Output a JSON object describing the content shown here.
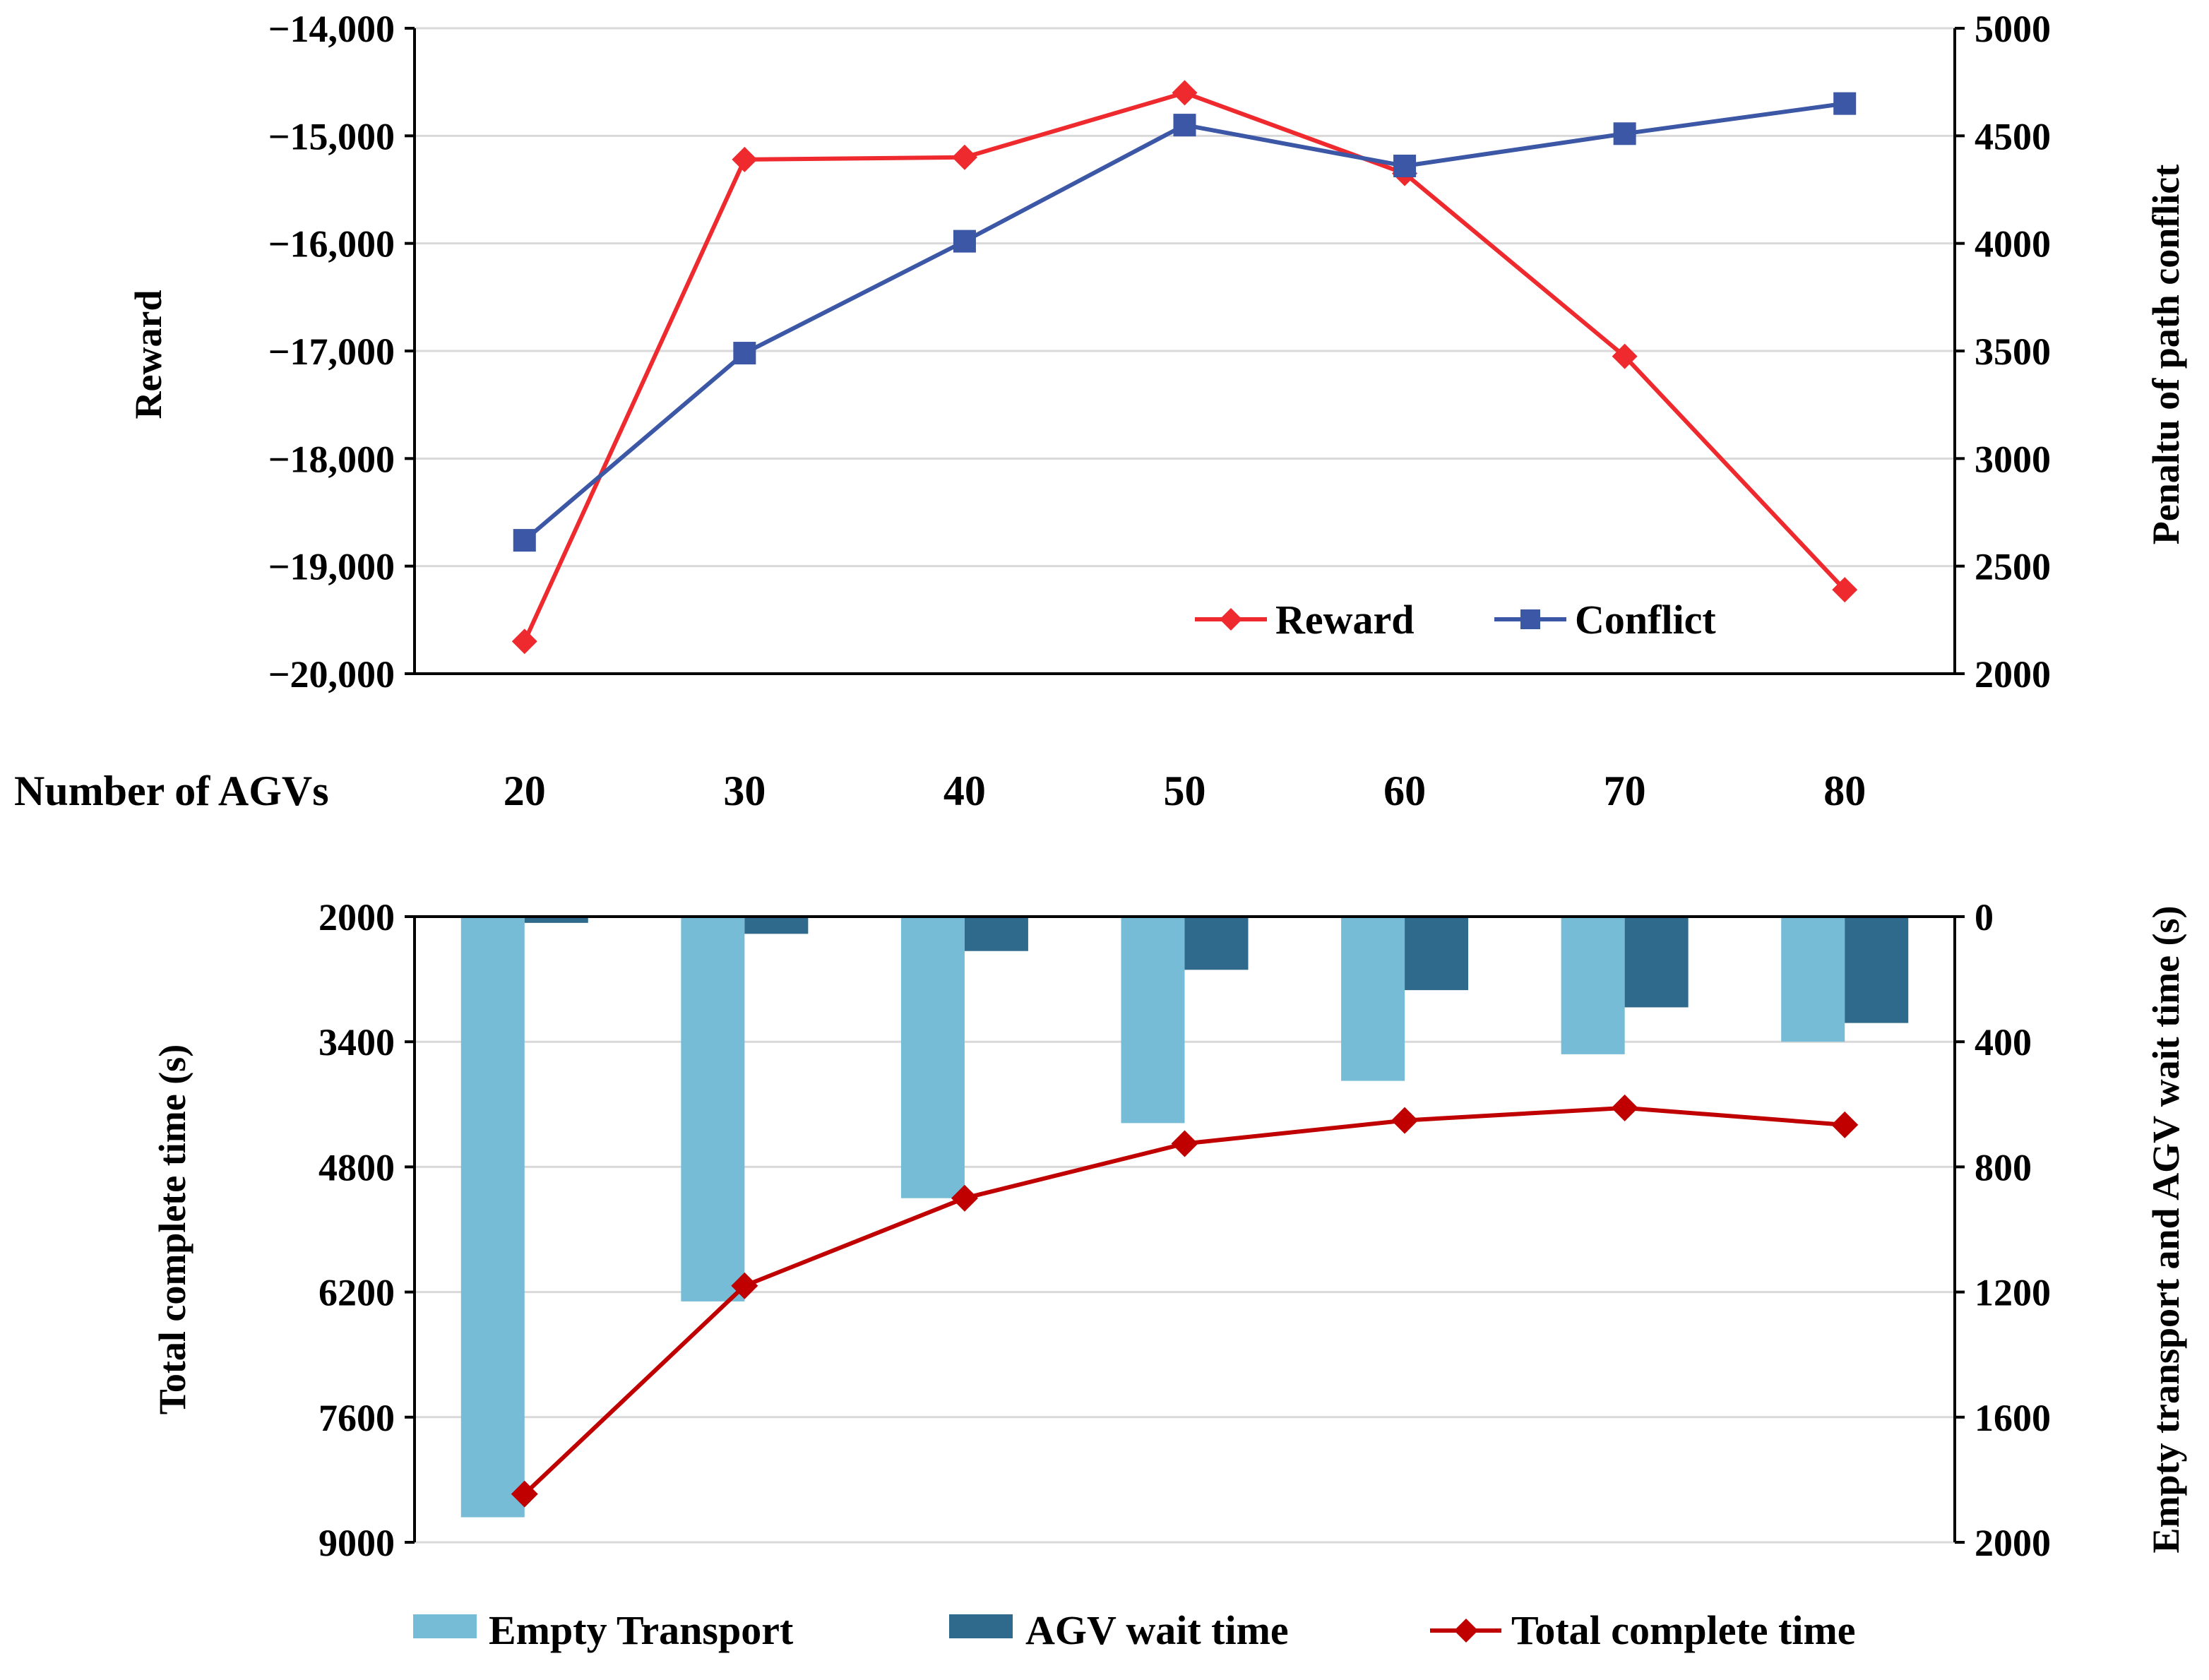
{
  "colors": {
    "reward": "#EE2A2F",
    "conflict": "#3B57A5",
    "empty_transport": "#77BCD6",
    "agv_wait": "#2F6A8D",
    "total_complete": "#C00000",
    "grid": "#D9D9D9",
    "axis": "#000000"
  },
  "shared_axis": {
    "label": "Number of AGVs",
    "categories": [
      "20",
      "30",
      "40",
      "50",
      "60",
      "70",
      "80"
    ]
  },
  "chart_data": [
    {
      "type": "line",
      "categories": [
        "20",
        "30",
        "40",
        "50",
        "60",
        "70",
        "80"
      ],
      "xlabel": "Number of AGVs",
      "ylabel": "Reward",
      "ylabel_right": "Penaltu of path conflict",
      "ylim": [
        -20000,
        -14000
      ],
      "ylim_right": [
        2000,
        5000
      ],
      "yticks": [
        "−14,000",
        "−15,000",
        "−16,000",
        "−17,000",
        "−18,000",
        "−19,000",
        "−20,000"
      ],
      "yticks_right": [
        "5000",
        "4500",
        "4000",
        "3500",
        "3000",
        "2500",
        "2000"
      ],
      "grid": true,
      "legend": "bottom-right",
      "series": [
        {
          "name": "Reward",
          "axis": "left",
          "marker": "diamond",
          "values": [
            -19700,
            -15220,
            -15200,
            -14600,
            -15350,
            -17050,
            -19220
          ]
        },
        {
          "name": "Conflict",
          "axis": "right",
          "marker": "square",
          "values": [
            2620,
            3490,
            4010,
            4550,
            4360,
            4510,
            4650
          ]
        }
      ]
    },
    {
      "type": "bar",
      "categories": [
        "20",
        "30",
        "40",
        "50",
        "60",
        "70",
        "80"
      ],
      "xlabel": "Number of AGVs",
      "ylabel": "Total complete time (s)",
      "ylabel_right": "Empty transport and AGV wait time (s)",
      "ylim": [
        2000,
        9000
      ],
      "ylim_right": [
        0,
        2000
      ],
      "yticks": [
        "2000",
        "3400",
        "4800",
        "6200",
        "7600",
        "9000"
      ],
      "yticks_right": [
        "0",
        "400",
        "800",
        "1200",
        "1600",
        "2000"
      ],
      "inverted_axes": true,
      "grid": true,
      "legend": "bottom",
      "series": [
        {
          "name": "Empty Transport",
          "axis": "right",
          "kind": "bar",
          "values": [
            1920,
            1230,
            900,
            660,
            525,
            440,
            400
          ]
        },
        {
          "name": "AGV wait time",
          "axis": "right",
          "kind": "bar",
          "values": [
            20,
            55,
            110,
            170,
            235,
            290,
            340
          ]
        },
        {
          "name": "Total complete time",
          "axis": "left",
          "kind": "line",
          "marker": "diamond",
          "values": [
            8460,
            6130,
            5150,
            4540,
            4280,
            4140,
            4330
          ]
        }
      ]
    }
  ]
}
